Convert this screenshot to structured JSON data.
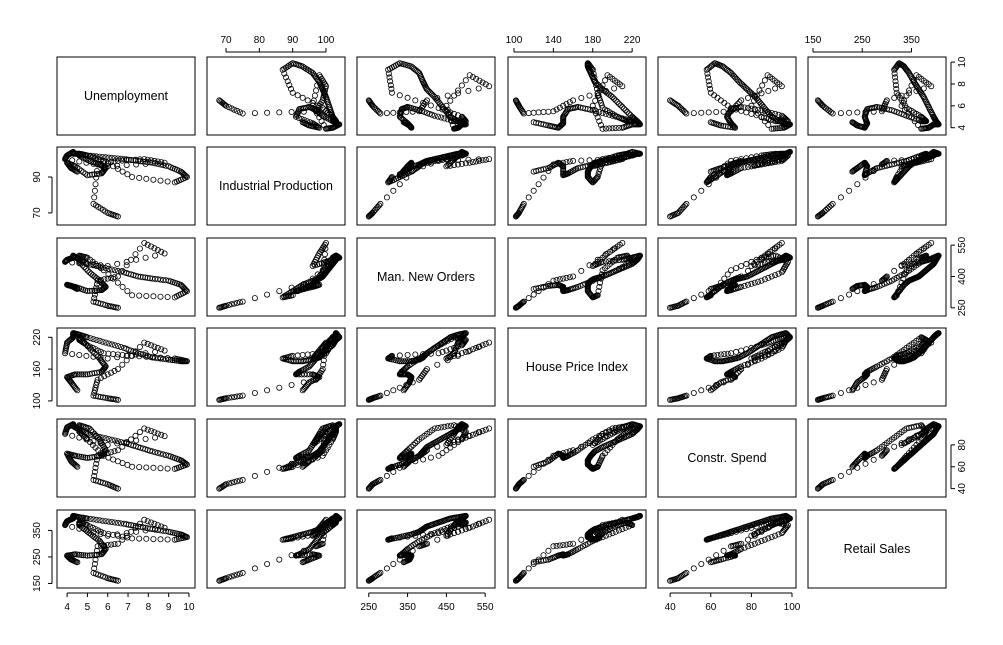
{
  "chart_data": {
    "type": "scatter",
    "variables": [
      {
        "name": "Unemployment",
        "range": [
          3.7,
          10.1
        ],
        "ticks": [
          4,
          6,
          8,
          10
        ],
        "tick_labels": [
          "4",
          "5",
          "6",
          "7",
          "8",
          "9",
          "10"
        ],
        "tick_values_labeled": [
          4,
          5,
          6,
          7,
          8,
          9,
          10
        ]
      },
      {
        "name": "Industrial Production",
        "range": [
          65.5,
          104.5
        ],
        "ticks": [
          70,
          80,
          90,
          100
        ]
      },
      {
        "name": "Man. New Orders",
        "range": [
          230,
          565
        ],
        "ticks": [
          250,
          350,
          450,
          550
        ]
      },
      {
        "name": "House Price Index",
        "range": [
          98,
          230
        ],
        "ticks": [
          100,
          140,
          180,
          220
        ]
      },
      {
        "name": "Constr. Spend",
        "range": [
          36,
          100
        ],
        "ticks": [
          40,
          60,
          80,
          100
        ]
      },
      {
        "name": "Retail Sales",
        "range": [
          148,
          412
        ],
        "ticks": [
          150,
          250,
          350
        ]
      }
    ],
    "axis_ticks": {
      "top": [
        {
          "var": 1,
          "values": [
            70,
            80,
            90,
            100
          ]
        },
        {
          "var": 3,
          "values": [
            100,
            140,
            180,
            220
          ]
        },
        {
          "var": 5,
          "values": [
            150,
            250,
            350
          ]
        }
      ],
      "bottom": [
        {
          "var": 0,
          "values": [
            4,
            5,
            6,
            7,
            8,
            9,
            10
          ]
        },
        {
          "var": 2,
          "values": [
            250,
            350,
            450,
            550
          ]
        },
        {
          "var": 4,
          "values": [
            40,
            60,
            80,
            100
          ]
        }
      ],
      "left": [
        {
          "var": 1,
          "values": [
            70,
            90
          ]
        },
        {
          "var": 3,
          "values": [
            100,
            160,
            220
          ]
        },
        {
          "var": 5,
          "values": [
            150,
            250,
            350
          ]
        }
      ],
      "right": [
        {
          "var": 0,
          "values": [
            4,
            6,
            8,
            10
          ]
        },
        {
          "var": 2,
          "values": [
            250,
            400,
            550
          ]
        },
        {
          "var": 4,
          "values": [
            40,
            60,
            80
          ]
        }
      ]
    },
    "observations": {
      "Unemployment": [
        4.5,
        4.2,
        4.0,
        4.4,
        5.0,
        5.7,
        5.9,
        5.6,
        5.1,
        4.6,
        4.6,
        5.0,
        5.8,
        7.2,
        9.3,
        9.9,
        9.6,
        9.0,
        8.2,
        7.5,
        6.8,
        5.9,
        5.0,
        4.6,
        4.3,
        4.3,
        4.0,
        3.9,
        6.0,
        8.8,
        7.8,
        6.5,
        5.5,
        5.3,
        6.0,
        6.5
      ],
      "Industrial Production": [
        93,
        95,
        98,
        96,
        91,
        92,
        95,
        97,
        99,
        102,
        103,
        102,
        99,
        90,
        87,
        90,
        93,
        96,
        98,
        99,
        100,
        101,
        102,
        103,
        103,
        104,
        102,
        100,
        96,
        98,
        100,
        99,
        97,
        75,
        70,
        68
      ],
      "Man. New Orders": [
        340,
        355,
        360,
        350,
        330,
        335,
        350,
        380,
        420,
        470,
        500,
        490,
        430,
        310,
        300,
        330,
        360,
        380,
        390,
        400,
        420,
        440,
        460,
        480,
        500,
        490,
        480,
        470,
        450,
        510,
        560,
        400,
        380,
        280,
        260,
        250
      ],
      "House Price Index": [
        120,
        135,
        145,
        150,
        150,
        155,
        165,
        180,
        200,
        220,
        215,
        205,
        190,
        185,
        180,
        175,
        175,
        178,
        182,
        190,
        200,
        210,
        220,
        225,
        228,
        220,
        210,
        190,
        180,
        195,
        210,
        160,
        140,
        110,
        105,
        102
      ],
      "Constr. Spend": [
        60,
        65,
        72,
        70,
        68,
        70,
        75,
        85,
        95,
        98,
        92,
        85,
        70,
        60,
        58,
        62,
        66,
        70,
        74,
        78,
        82,
        86,
        90,
        94,
        97,
        99,
        96,
        90,
        80,
        88,
        95,
        75,
        70,
        48,
        44,
        40
      ],
      "Retail Sales": [
        230,
        240,
        255,
        260,
        255,
        260,
        280,
        310,
        340,
        370,
        380,
        370,
        340,
        320,
        315,
        325,
        335,
        345,
        355,
        365,
        375,
        385,
        395,
        400,
        405,
        395,
        385,
        370,
        330,
        360,
        390,
        300,
        290,
        190,
        170,
        160
      ]
    }
  }
}
